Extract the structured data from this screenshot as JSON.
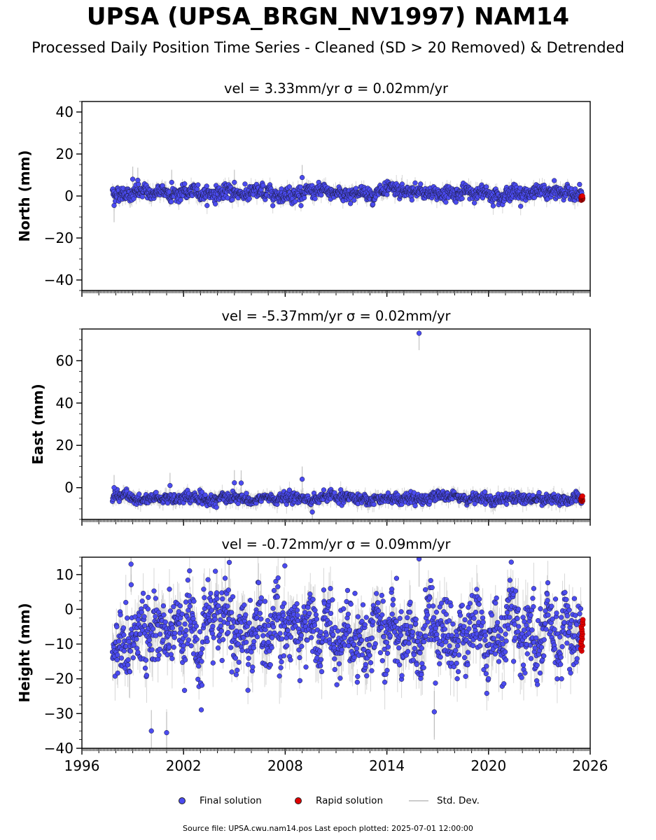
{
  "title": "UPSA (UPSA_BRGN_NV1997) NAM14",
  "subtitle": "Processed Daily Position Time Series - Cleaned (SD > 20 Removed) & Detrended",
  "footer": "Source file: UPSA.cwu.nam14.pos  Last epoch plotted: 2025-07-01 12:00:00",
  "legend": {
    "final": "Final solution",
    "rapid": "Rapid solution",
    "std": "Std. Dev."
  },
  "colors": {
    "final": "#4b4bf0",
    "rapid": "#e00000",
    "std": "#b4b4b4",
    "edge": "#1a1a3a"
  },
  "chart_data": [
    {
      "type": "scatter",
      "panel": "north",
      "title": "vel = 3.33mm/yr   σ = 0.02mm/yr",
      "ylabel": "North (mm)",
      "xlim": [
        1996,
        2026
      ],
      "ylim": [
        -45,
        45
      ],
      "yticks": [
        -40,
        -20,
        0,
        20,
        40
      ],
      "xticks": [
        1996,
        2002,
        2008,
        2014,
        2020,
        2026
      ],
      "xtick_labels": [],
      "data_range_x": [
        1997.8,
        2025.5
      ],
      "final_mean_y": 1.5,
      "final_spread_y": 2.2,
      "rapid_y_range": [
        -2,
        0
      ],
      "outliers": [
        [
          1999.0,
          8
        ],
        [
          1999.3,
          7.5
        ],
        [
          2005.0,
          6.5
        ],
        [
          2009.0,
          8.8
        ],
        [
          1997.9,
          -4.5
        ],
        [
          2001.3,
          6.5
        ]
      ]
    },
    {
      "type": "scatter",
      "panel": "east",
      "title": "vel = -5.37mm/yr   σ = 0.02mm/yr",
      "ylabel": "East (mm)",
      "xlim": [
        1996,
        2026
      ],
      "ylim": [
        -15,
        75
      ],
      "yticks": [
        0,
        20,
        40,
        60
      ],
      "xticks": [
        1996,
        2002,
        2008,
        2014,
        2020,
        2026
      ],
      "xtick_labels": [],
      "data_range_x": [
        1997.8,
        2025.5
      ],
      "final_mean_y": -5,
      "final_spread_y": 1.6,
      "rapid_y_range": [
        -6.5,
        -4
      ],
      "outliers": [
        [
          2015.9,
          73
        ],
        [
          2005.0,
          2.3
        ],
        [
          2005.4,
          2.2
        ],
        [
          2009.0,
          4
        ],
        [
          2009.6,
          -11.5
        ],
        [
          1997.9,
          0
        ],
        [
          2001.2,
          1
        ]
      ]
    },
    {
      "type": "scatter",
      "panel": "height",
      "title": "vel = -0.72mm/yr   σ = 0.09mm/yr",
      "ylabel": "Height (mm)",
      "xlim": [
        1996,
        2026
      ],
      "ylim": [
        -40,
        15
      ],
      "yticks": [
        -40,
        -30,
        -20,
        -10,
        0,
        10
      ],
      "xticks": [
        1996,
        2002,
        2008,
        2014,
        2020,
        2026
      ],
      "xtick_labels": [
        "1996",
        "2002",
        "2008",
        "2014",
        "2020",
        "2026"
      ],
      "data_range_x": [
        1997.8,
        2025.5
      ],
      "final_mean_y": -7,
      "final_spread_y": 6.5,
      "rapid_y_range": [
        -12,
        -3
      ],
      "outliers": [
        [
          1998.9,
          13
        ],
        [
          2000.1,
          -35
        ],
        [
          2001.0,
          -35.5
        ],
        [
          2015.9,
          14.5
        ],
        [
          2016.8,
          -29.5
        ],
        [
          2004.7,
          13.5
        ]
      ]
    }
  ]
}
